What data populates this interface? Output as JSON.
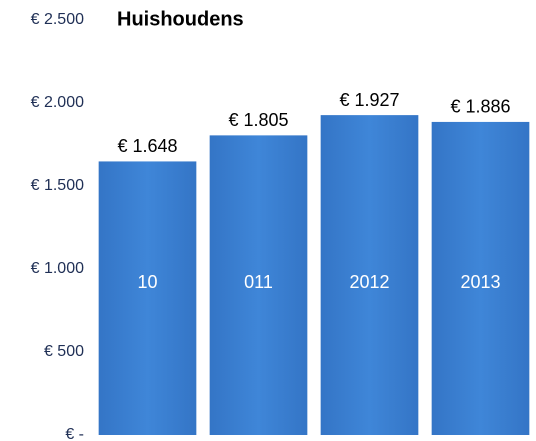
{
  "chart_data": {
    "type": "bar",
    "title": "Huishoudens",
    "categories": [
      "10",
      "011",
      "2012",
      "2013"
    ],
    "values": [
      1648,
      1805,
      1927,
      1886
    ],
    "value_labels": [
      "€ 1.648",
      "€ 1.805",
      "€ 1.927",
      "€ 1.886"
    ],
    "color": "#3b7fd2",
    "ylim": [
      0,
      2500
    ],
    "yticks": [
      {
        "value": 0,
        "label": "€ -"
      },
      {
        "value": 500,
        "label": "€ 500"
      },
      {
        "value": 1000,
        "label": "€ 1.000"
      },
      {
        "value": 1500,
        "label": "€ 1.500"
      },
      {
        "value": 2000,
        "label": "€ 2.000"
      },
      {
        "value": 2500,
        "label": "€ 2.500"
      }
    ],
    "grid": false
  }
}
